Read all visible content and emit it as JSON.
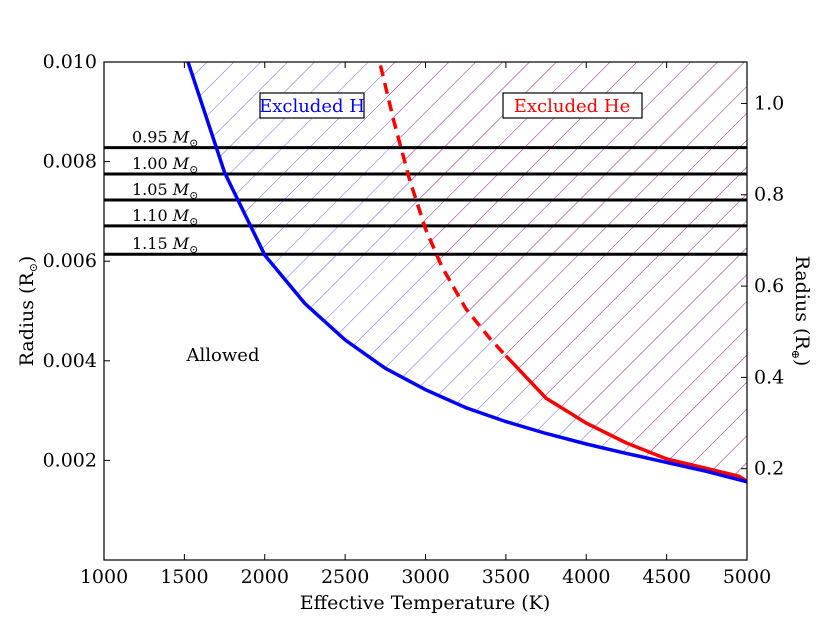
{
  "chart_data": {
    "type": "line",
    "xlabel": "Effective Temperature (K)",
    "ylabel_left": "Radius (R",
    "ylabel_left_sub": "⊙",
    "ylabel_right": "Radius (R",
    "ylabel_right_sub": "⊕",
    "xlim": [
      1000,
      5000
    ],
    "ylim": [
      0,
      0.01
    ],
    "x_ticks": [
      1000,
      1500,
      2000,
      2500,
      3000,
      3500,
      4000,
      4500,
      5000
    ],
    "x_tick_labels": [
      "1000",
      "1500",
      "2000",
      "2500",
      "3000",
      "3500",
      "4000",
      "4500",
      "5000"
    ],
    "y_ticks": [
      0.002,
      0.004,
      0.006,
      0.008,
      0.01
    ],
    "y_tick_labels": [
      "0.002",
      "0.004",
      "0.006",
      "0.008",
      "0.010"
    ],
    "y2_ticks": [
      0.2,
      0.4,
      0.6,
      0.8,
      1.0
    ],
    "y2_tick_labels": [
      "0.2",
      "0.4",
      "0.6",
      "0.8",
      "1.0"
    ],
    "earth_radius_in_solar": 0.009168,
    "series": [
      {
        "name": "H boundary",
        "color": "#0000ff",
        "style": "solid",
        "x": [
          1500,
          1750,
          2000,
          2250,
          2500,
          2750,
          3000,
          3250,
          3500,
          3750,
          4000,
          4250,
          4500,
          4750,
          5000
        ],
        "y": [
          0.01022,
          0.00778,
          0.00612,
          0.00515,
          0.00442,
          0.00385,
          0.00342,
          0.00306,
          0.00278,
          0.00254,
          0.00233,
          0.00214,
          0.00196,
          0.00178,
          0.00157
        ]
      },
      {
        "name": "He boundary",
        "color": "#ff0000",
        "segments": [
          {
            "style": "dashed",
            "x": [
              2720,
              2800,
              2900,
              3000,
              3100,
              3250,
              3400,
              3500
            ],
            "y": [
              0.00993,
              0.00885,
              0.00765,
              0.00665,
              0.0059,
              0.00505,
              0.00445,
              0.0041
            ]
          },
          {
            "style": "solid",
            "x": [
              3500,
              3750,
              4000,
              4250,
              4500,
              4750,
              4950,
              5000
            ],
            "y": [
              0.0041,
              0.00325,
              0.00275,
              0.00235,
              0.00203,
              0.00184,
              0.00168,
              0.00158
            ]
          }
        ]
      }
    ],
    "mass_lines": [
      {
        "label": "0.95",
        "radius": 0.00828
      },
      {
        "label": "1.00",
        "radius": 0.00775
      },
      {
        "label": "1.05",
        "radius": 0.00723
      },
      {
        "label": "1.10",
        "radius": 0.00671
      },
      {
        "label": "1.15",
        "radius": 0.00614
      }
    ],
    "mass_unit": "M",
    "mass_unit_sub": "⊙",
    "regions": [
      {
        "label": "Excluded H",
        "color": "#0000ff"
      },
      {
        "label": "Excluded He",
        "color": "#ff0000"
      },
      {
        "label": "Allowed",
        "color": "#000000"
      }
    ]
  }
}
